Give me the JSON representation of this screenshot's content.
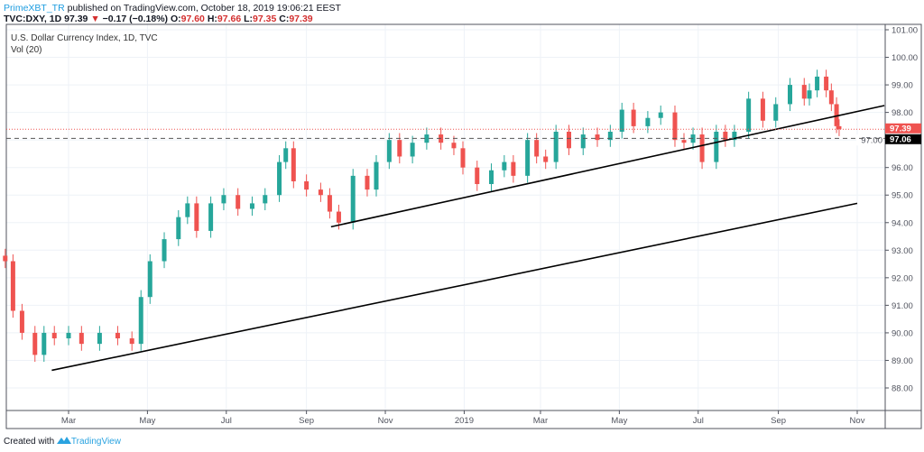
{
  "header": {
    "author": "PrimeXBT_TR",
    "published": "published on TradingView.com, October 18, 2019 19:06:21 EEST",
    "symbol": "TVC:DXY, 1D",
    "last": "97.39",
    "change": "−0.17 (−0.18%)",
    "o_label": "O:",
    "o": "97.60",
    "h_label": "H:",
    "h": "97.66",
    "l_label": "L:",
    "l": "97.35",
    "c_label": "C:",
    "c": "97.39"
  },
  "legend": {
    "title": "U.S. Dollar Currency Index, 1D, TVC",
    "volume": "Vol (20)"
  },
  "footer": {
    "created": "Created with",
    "brand": "TradingView"
  },
  "colors": {
    "up": "#26a69a",
    "down": "#ef5350",
    "trendline": "#000000",
    "last_price": "#ef5350",
    "level": "#000000"
  },
  "chart_data": {
    "type": "candlestick",
    "ylim": [
      87.2,
      101.2
    ],
    "xlim": [
      "2018-01-11",
      "2019-11-25"
    ],
    "y_ticks": [
      "88.00",
      "89.00",
      "90.00",
      "91.00",
      "92.00",
      "93.00",
      "94.00",
      "95.00",
      "96.00",
      "97.00",
      "98.00",
      "99.00",
      "100.00",
      "101.00"
    ],
    "x_ticks": [
      {
        "label": "Mar",
        "date": "2018-03-01"
      },
      {
        "label": "May",
        "date": "2018-05-01"
      },
      {
        "label": "Jul",
        "date": "2018-07-01"
      },
      {
        "label": "Sep",
        "date": "2018-09-01"
      },
      {
        "label": "Nov",
        "date": "2018-11-01"
      },
      {
        "label": "2019",
        "date": "2019-01-01"
      },
      {
        "label": "Mar",
        "date": "2019-03-01"
      },
      {
        "label": "May",
        "date": "2019-05-01"
      },
      {
        "label": "Jul",
        "date": "2019-07-01"
      },
      {
        "label": "Sep",
        "date": "2019-09-01"
      },
      {
        "label": "Nov",
        "date": "2019-11-01"
      }
    ],
    "grid": true,
    "closes": [
      [
        "2018-01-11",
        92.6
      ],
      [
        "2018-01-17",
        90.8
      ],
      [
        "2018-01-24",
        90.0
      ],
      [
        "2018-02-03",
        89.2
      ],
      [
        "2018-02-10",
        90.0
      ],
      [
        "2018-02-18",
        89.8
      ],
      [
        "2018-03-01",
        90.0
      ],
      [
        "2018-03-11",
        89.6
      ],
      [
        "2018-03-25",
        90.0
      ],
      [
        "2018-04-08",
        89.8
      ],
      [
        "2018-04-19",
        89.6
      ],
      [
        "2018-04-26",
        91.3
      ],
      [
        "2018-05-03",
        92.6
      ],
      [
        "2018-05-14",
        93.4
      ],
      [
        "2018-05-25",
        94.2
      ],
      [
        "2018-06-01",
        94.7
      ],
      [
        "2018-06-08",
        93.7
      ],
      [
        "2018-06-19",
        94.7
      ],
      [
        "2018-06-29",
        95.0
      ],
      [
        "2018-07-10",
        94.5
      ],
      [
        "2018-07-21",
        94.7
      ],
      [
        "2018-07-31",
        95.0
      ],
      [
        "2018-08-11",
        96.2
      ],
      [
        "2018-08-16",
        96.7
      ],
      [
        "2018-08-22",
        95.5
      ],
      [
        "2018-09-01",
        95.2
      ],
      [
        "2018-09-12",
        95.0
      ],
      [
        "2018-09-19",
        94.4
      ],
      [
        "2018-09-26",
        94.0
      ],
      [
        "2018-10-07",
        95.7
      ],
      [
        "2018-10-18",
        95.2
      ],
      [
        "2018-10-25",
        96.2
      ],
      [
        "2018-11-04",
        97.0
      ],
      [
        "2018-11-12",
        96.4
      ],
      [
        "2018-11-22",
        96.9
      ],
      [
        "2018-12-03",
        97.2
      ],
      [
        "2018-12-14",
        96.9
      ],
      [
        "2018-12-24",
        96.7
      ],
      [
        "2018-12-31",
        96.0
      ],
      [
        "2019-01-11",
        95.4
      ],
      [
        "2019-01-22",
        95.9
      ],
      [
        "2019-02-01",
        96.2
      ],
      [
        "2019-02-08",
        95.7
      ],
      [
        "2019-02-19",
        97.0
      ],
      [
        "2019-02-26",
        96.4
      ],
      [
        "2019-03-05",
        96.2
      ],
      [
        "2019-03-13",
        97.3
      ],
      [
        "2019-03-23",
        96.7
      ],
      [
        "2019-04-03",
        97.2
      ],
      [
        "2019-04-14",
        97.0
      ],
      [
        "2019-04-24",
        97.3
      ],
      [
        "2019-05-03",
        98.1
      ],
      [
        "2019-05-12",
        97.5
      ],
      [
        "2019-05-23",
        97.8
      ],
      [
        "2019-06-02",
        98.0
      ],
      [
        "2019-06-13",
        97.0
      ],
      [
        "2019-06-20",
        96.9
      ],
      [
        "2019-06-27",
        97.2
      ],
      [
        "2019-07-04",
        96.2
      ],
      [
        "2019-07-15",
        97.3
      ],
      [
        "2019-07-22",
        97.0
      ],
      [
        "2019-07-29",
        97.3
      ],
      [
        "2019-08-09",
        98.5
      ],
      [
        "2019-08-20",
        97.7
      ],
      [
        "2019-08-30",
        98.3
      ],
      [
        "2019-09-10",
        99.0
      ],
      [
        "2019-09-21",
        98.5
      ],
      [
        "2019-09-25",
        98.8
      ],
      [
        "2019-10-01",
        99.3
      ],
      [
        "2019-10-08",
        98.8
      ],
      [
        "2019-10-12",
        98.3
      ],
      [
        "2019-10-16",
        97.5
      ],
      [
        "2019-10-18",
        97.39
      ]
    ],
    "trendlines": [
      {
        "from": [
          "2018-02-16",
          88.64
        ],
        "to": [
          "2019-11-01",
          94.7
        ]
      },
      {
        "from": [
          "2018-09-20",
          93.85
        ],
        "to": [
          "2019-11-22",
          98.25
        ]
      }
    ],
    "levels": [
      {
        "value": 97.39,
        "label": "97.39",
        "style": "dotted",
        "kind": "last_price"
      },
      {
        "value": 97.06,
        "label": "97.06",
        "style": "dashed",
        "kind": "level"
      }
    ]
  }
}
